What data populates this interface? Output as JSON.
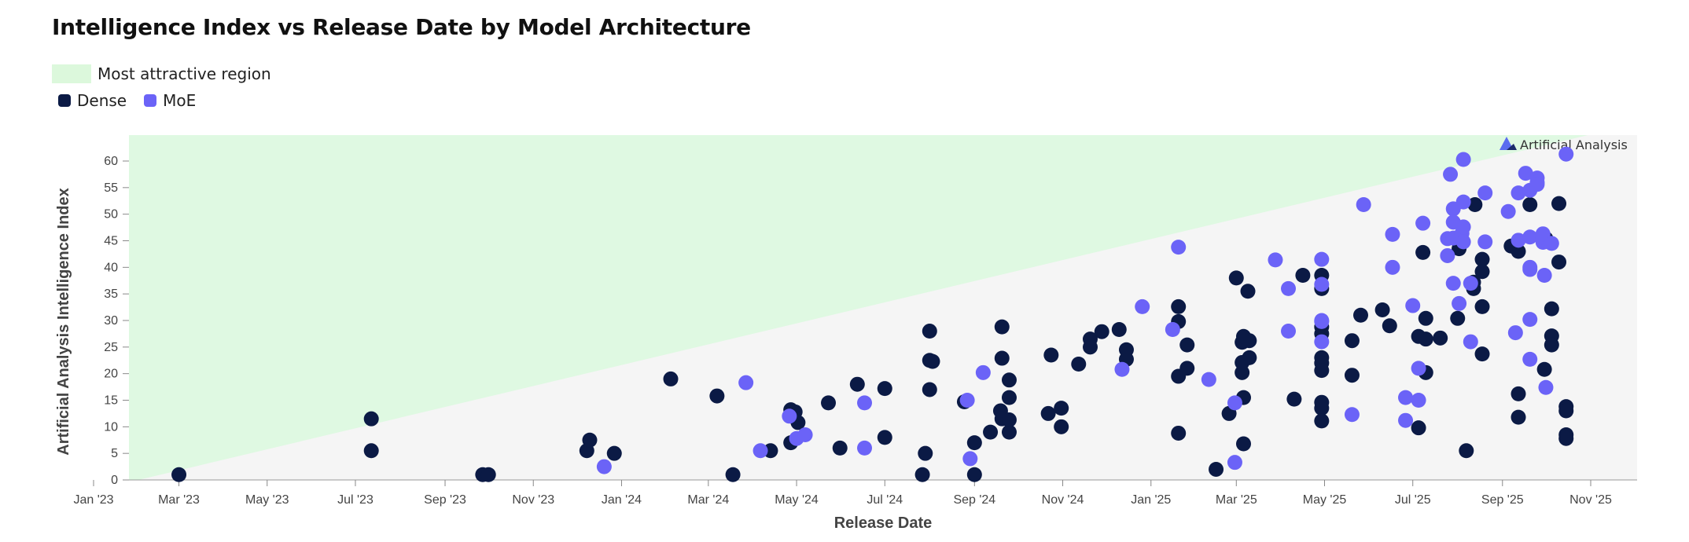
{
  "title": "Intelligence Index vs Release Date by Model Architecture",
  "legend": {
    "region_label": "Most attractive region",
    "series": [
      {
        "name": "Dense",
        "color": "#0b1a45"
      },
      {
        "name": "MoE",
        "color": "#6b63f7"
      }
    ]
  },
  "watermark": "Artificial Analysis",
  "colors": {
    "plot_bg": "#f5f5f5",
    "region": "#dff9e2",
    "dense": "#0b1a45",
    "moe": "#6b63f7"
  },
  "chart_data": {
    "type": "scatter",
    "title": "Intelligence Index vs Release Date by Model Architecture",
    "xlabel": "Release Date",
    "ylabel": "Artificial Analysis Intelligence Index",
    "x_ticks": [
      {
        "date": "2023-01-01",
        "label": "Jan '23"
      },
      {
        "date": "2023-03-01",
        "label": "Mar '23"
      },
      {
        "date": "2023-05-01",
        "label": "May '23"
      },
      {
        "date": "2023-07-01",
        "label": "Jul '23"
      },
      {
        "date": "2023-09-01",
        "label": "Sep '23"
      },
      {
        "date": "2023-11-01",
        "label": "Nov '23"
      },
      {
        "date": "2024-01-01",
        "label": "Jan '24"
      },
      {
        "date": "2024-03-01",
        "label": "Mar '24"
      },
      {
        "date": "2024-05-01",
        "label": "May '24"
      },
      {
        "date": "2024-07-01",
        "label": "Jul '24"
      },
      {
        "date": "2024-09-01",
        "label": "Sep '24"
      },
      {
        "date": "2024-11-01",
        "label": "Nov '24"
      },
      {
        "date": "2025-01-01",
        "label": "Jan '25"
      },
      {
        "date": "2025-03-01",
        "label": "Mar '25"
      },
      {
        "date": "2025-05-01",
        "label": "May '25"
      },
      {
        "date": "2025-07-01",
        "label": "Jul '25"
      },
      {
        "date": "2025-09-01",
        "label": "Sep '25"
      },
      {
        "date": "2025-11-01",
        "label": "Nov '25"
      }
    ],
    "y_ticks": [
      0,
      5,
      10,
      15,
      20,
      25,
      30,
      35,
      40,
      45,
      50,
      55,
      60
    ],
    "xlim": [
      "2023-01-01",
      "2025-11-10"
    ],
    "ylim": [
      0,
      65
    ],
    "region": {
      "label": "Most attractive region",
      "from": [
        "2023-02-01",
        0
      ],
      "to": [
        "2025-10-30",
        65
      ]
    },
    "grid": false,
    "legend_position": "top-left",
    "series": [
      {
        "name": "Dense",
        "points": [
          [
            "2023-03-01",
            1
          ],
          [
            "2023-07-12",
            11.5
          ],
          [
            "2023-07-12",
            5.5
          ],
          [
            "2023-09-27",
            1
          ],
          [
            "2023-10-01",
            1
          ],
          [
            "2023-12-08",
            5.5
          ],
          [
            "2023-12-10",
            7.5
          ],
          [
            "2023-12-27",
            5
          ],
          [
            "2024-02-04",
            19
          ],
          [
            "2024-03-07",
            15.8
          ],
          [
            "2024-03-18",
            1
          ],
          [
            "2024-04-13",
            5.5
          ],
          [
            "2024-04-27",
            13.2
          ],
          [
            "2024-04-27",
            7
          ],
          [
            "2024-04-30",
            12.8
          ],
          [
            "2024-05-02",
            10.8
          ],
          [
            "2024-05-23",
            14.5
          ],
          [
            "2024-05-31",
            6
          ],
          [
            "2024-06-12",
            18
          ],
          [
            "2024-07-01",
            17.2
          ],
          [
            "2024-07-01",
            8
          ],
          [
            "2024-07-27",
            1
          ],
          [
            "2024-07-29",
            5
          ],
          [
            "2024-08-01",
            17
          ],
          [
            "2024-08-01",
            28
          ],
          [
            "2024-08-01",
            22.5
          ],
          [
            "2024-08-03",
            22.3
          ],
          [
            "2024-08-25",
            14.7
          ],
          [
            "2024-09-01",
            1
          ],
          [
            "2024-09-01",
            7
          ],
          [
            "2024-09-12",
            9
          ],
          [
            "2024-09-19",
            13
          ],
          [
            "2024-09-20",
            11.5
          ],
          [
            "2024-09-20",
            22.9
          ],
          [
            "2024-09-20",
            28.8
          ],
          [
            "2024-09-25",
            15.5
          ],
          [
            "2024-09-25",
            9
          ],
          [
            "2024-09-25",
            18.8
          ],
          [
            "2024-09-25",
            11.3
          ],
          [
            "2024-10-24",
            23.5
          ],
          [
            "2024-10-22",
            12.5
          ],
          [
            "2024-10-31",
            13.5
          ],
          [
            "2024-10-31",
            10
          ],
          [
            "2024-11-12",
            21.8
          ],
          [
            "2024-11-20",
            26.5
          ],
          [
            "2024-11-20",
            25
          ],
          [
            "2024-11-28",
            27.9
          ],
          [
            "2024-12-10",
            28.3
          ],
          [
            "2024-12-15",
            22.7
          ],
          [
            "2024-12-15",
            24.5
          ],
          [
            "2025-01-20",
            29.8
          ],
          [
            "2025-01-20",
            32.6
          ],
          [
            "2025-01-20",
            19.5
          ],
          [
            "2025-01-20",
            8.8
          ],
          [
            "2025-01-26",
            21
          ],
          [
            "2025-01-26",
            25.4
          ],
          [
            "2025-02-15",
            2
          ],
          [
            "2025-02-24",
            12.5
          ],
          [
            "2025-03-01",
            38
          ],
          [
            "2025-03-05",
            25.9
          ],
          [
            "2025-03-05",
            20.2
          ],
          [
            "2025-03-05",
            22.1
          ],
          [
            "2025-03-06",
            15.5
          ],
          [
            "2025-03-06",
            27
          ],
          [
            "2025-03-06",
            6.8
          ],
          [
            "2025-03-10",
            23
          ],
          [
            "2025-03-10",
            26.2
          ],
          [
            "2025-03-09",
            35.5
          ],
          [
            "2025-04-10",
            15.2
          ],
          [
            "2025-04-16",
            38.5
          ],
          [
            "2025-04-29",
            36
          ],
          [
            "2025-04-29",
            38.5
          ],
          [
            "2025-04-29",
            28.8
          ],
          [
            "2025-04-29",
            27.5
          ],
          [
            "2025-04-29",
            23
          ],
          [
            "2025-04-29",
            22
          ],
          [
            "2025-04-29",
            20.6
          ],
          [
            "2025-04-29",
            14.6
          ],
          [
            "2025-04-29",
            13.5
          ],
          [
            "2025-04-29",
            11.1
          ],
          [
            "2025-05-20",
            26.2
          ],
          [
            "2025-05-20",
            19.7
          ],
          [
            "2025-05-26",
            31
          ],
          [
            "2025-06-10",
            32
          ],
          [
            "2025-06-15",
            29
          ],
          [
            "2025-07-05",
            27
          ],
          [
            "2025-07-05",
            9.8
          ],
          [
            "2025-07-08",
            42.8
          ],
          [
            "2025-07-10",
            26.5
          ],
          [
            "2025-07-10",
            20.2
          ],
          [
            "2025-07-10",
            30.4
          ],
          [
            "2025-07-20",
            26.7
          ],
          [
            "2025-08-01",
            30.4
          ],
          [
            "2025-08-02",
            43.5
          ],
          [
            "2025-08-07",
            5.5
          ],
          [
            "2025-08-12",
            37.2
          ],
          [
            "2025-08-12",
            36
          ],
          [
            "2025-08-13",
            51.8
          ],
          [
            "2025-08-18",
            41.5
          ],
          [
            "2025-08-18",
            39.2
          ],
          [
            "2025-08-18",
            32.6
          ],
          [
            "2025-08-18",
            23.7
          ],
          [
            "2025-09-07",
            44
          ],
          [
            "2025-09-12",
            43
          ],
          [
            "2025-09-12",
            16.2
          ],
          [
            "2025-09-12",
            11.8
          ],
          [
            "2025-09-20",
            51.8
          ],
          [
            "2025-09-30",
            20.8
          ],
          [
            "2025-10-01",
            45.4
          ],
          [
            "2025-10-05",
            27.1
          ],
          [
            "2025-10-05",
            25.4
          ],
          [
            "2025-10-05",
            32.2
          ],
          [
            "2025-10-10",
            52
          ],
          [
            "2025-10-10",
            41
          ],
          [
            "2025-10-15",
            13.8
          ],
          [
            "2025-10-15",
            13
          ],
          [
            "2025-10-15",
            8.5
          ],
          [
            "2025-10-15",
            7.8
          ]
        ]
      },
      {
        "name": "MoE",
        "points": [
          [
            "2023-12-20",
            2.5
          ],
          [
            "2024-03-27",
            18.3
          ],
          [
            "2024-04-06",
            5.5
          ],
          [
            "2024-04-26",
            12
          ],
          [
            "2024-05-01",
            7.8
          ],
          [
            "2024-05-07",
            8.5
          ],
          [
            "2024-06-17",
            14.5
          ],
          [
            "2024-06-17",
            6
          ],
          [
            "2024-08-27",
            15
          ],
          [
            "2024-08-29",
            4
          ],
          [
            "2024-09-07",
            20.2
          ],
          [
            "2024-12-12",
            20.8
          ],
          [
            "2024-12-26",
            32.6
          ],
          [
            "2025-01-16",
            28.3
          ],
          [
            "2025-01-20",
            43.8
          ],
          [
            "2025-02-10",
            18.9
          ],
          [
            "2025-02-28",
            3.3
          ],
          [
            "2025-02-28",
            14.5
          ],
          [
            "2025-03-28",
            41.4
          ],
          [
            "2025-04-06",
            36
          ],
          [
            "2025-04-06",
            28
          ],
          [
            "2025-04-29",
            41.5
          ],
          [
            "2025-04-29",
            36.8
          ],
          [
            "2025-04-29",
            30
          ],
          [
            "2025-04-29",
            29.8
          ],
          [
            "2025-04-29",
            26
          ],
          [
            "2025-05-20",
            12.3
          ],
          [
            "2025-05-28",
            51.8
          ],
          [
            "2025-06-17",
            46.2
          ],
          [
            "2025-06-17",
            40
          ],
          [
            "2025-06-26",
            15.5
          ],
          [
            "2025-06-26",
            11.2
          ],
          [
            "2025-07-01",
            32.8
          ],
          [
            "2025-07-05",
            21
          ],
          [
            "2025-07-05",
            15
          ],
          [
            "2025-07-08",
            48.3
          ],
          [
            "2025-07-25",
            42.2
          ],
          [
            "2025-07-25",
            45.4
          ],
          [
            "2025-07-27",
            57.5
          ],
          [
            "2025-07-29",
            51
          ],
          [
            "2025-07-29",
            48.5
          ],
          [
            "2025-07-29",
            45.5
          ],
          [
            "2025-07-29",
            37
          ],
          [
            "2025-08-02",
            33.2
          ],
          [
            "2025-08-04",
            46.4
          ],
          [
            "2025-08-05",
            60.3
          ],
          [
            "2025-08-05",
            52.3
          ],
          [
            "2025-08-05",
            47.6
          ],
          [
            "2025-08-05",
            44.8
          ],
          [
            "2025-08-10",
            26
          ],
          [
            "2025-08-10",
            37
          ],
          [
            "2025-08-20",
            54
          ],
          [
            "2025-08-20",
            44.8
          ],
          [
            "2025-09-05",
            50.5
          ],
          [
            "2025-09-10",
            27.7
          ],
          [
            "2025-09-12",
            54
          ],
          [
            "2025-09-12",
            45.1
          ],
          [
            "2025-09-17",
            57.7
          ],
          [
            "2025-09-20",
            39.6
          ],
          [
            "2025-09-20",
            40
          ],
          [
            "2025-09-20",
            45.7
          ],
          [
            "2025-09-20",
            54.5
          ],
          [
            "2025-09-20",
            30.2
          ],
          [
            "2025-09-20",
            22.7
          ],
          [
            "2025-09-25",
            56.8
          ],
          [
            "2025-09-25",
            56
          ],
          [
            "2025-09-25",
            55.6
          ],
          [
            "2025-09-29",
            44.7
          ],
          [
            "2025-09-29",
            45.6
          ],
          [
            "2025-09-29",
            46.3
          ],
          [
            "2025-09-30",
            38.5
          ],
          [
            "2025-10-01",
            17.4
          ],
          [
            "2025-10-05",
            44.5
          ],
          [
            "2025-10-15",
            61.3
          ]
        ]
      }
    ]
  }
}
